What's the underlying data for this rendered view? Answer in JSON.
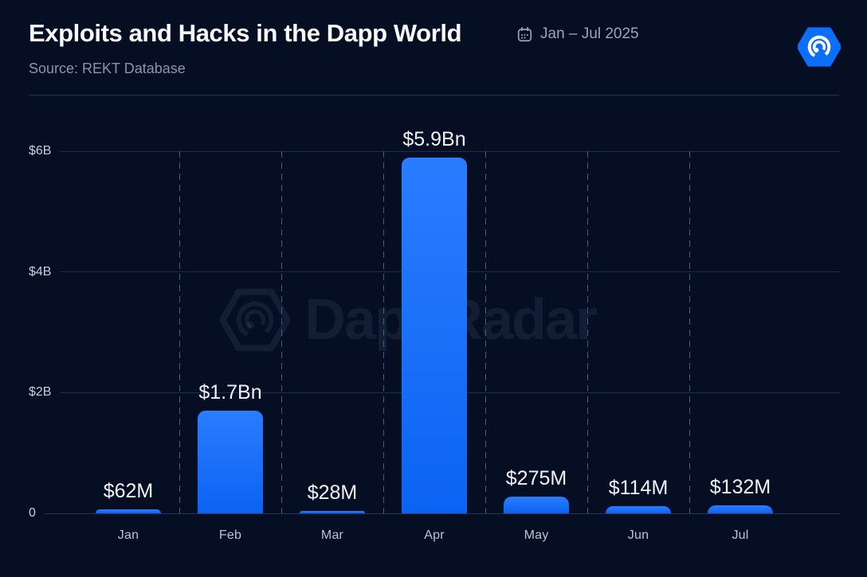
{
  "header": {
    "title": "Exploits and Hacks in the Dapp World",
    "source": "Source: REKT Database",
    "date_range": "Jan – Jul 2025",
    "logo_name": "dappradar-logo"
  },
  "watermark": "DappRadar",
  "colors": {
    "background": "#050E23",
    "bar_top": "#2A7DFF",
    "bar_bottom": "#0B63F3",
    "logo_blue": "#0B6FFB",
    "gridline": "#1E2C4F",
    "title_text": "#F7F9FC",
    "muted_text": "#8B94A9"
  },
  "chart_data": {
    "type": "bar",
    "title": "Exploits and Hacks in the Dapp World",
    "categories": [
      "Jan",
      "Feb",
      "Mar",
      "Apr",
      "May",
      "Jun",
      "Jul"
    ],
    "values": [
      62,
      1700,
      28,
      5900,
      275,
      114,
      132
    ],
    "value_unit": "USD millions",
    "value_labels": [
      "$62M",
      "$1.7Bn",
      "$28M",
      "$5.9Bn",
      "$275M",
      "$114M",
      "$132M"
    ],
    "xlabel": "",
    "ylabel": "",
    "ylim": [
      0,
      6000
    ],
    "y_ticks": [
      {
        "label": "$6B",
        "value": 6000
      },
      {
        "label": "$4B",
        "value": 4000
      },
      {
        "label": "$2B",
        "value": 2000
      },
      {
        "label": "0",
        "value": 0
      }
    ],
    "grid": "horizontal solid lines at ticks, dashed vertical separators between months",
    "legend": "none"
  }
}
